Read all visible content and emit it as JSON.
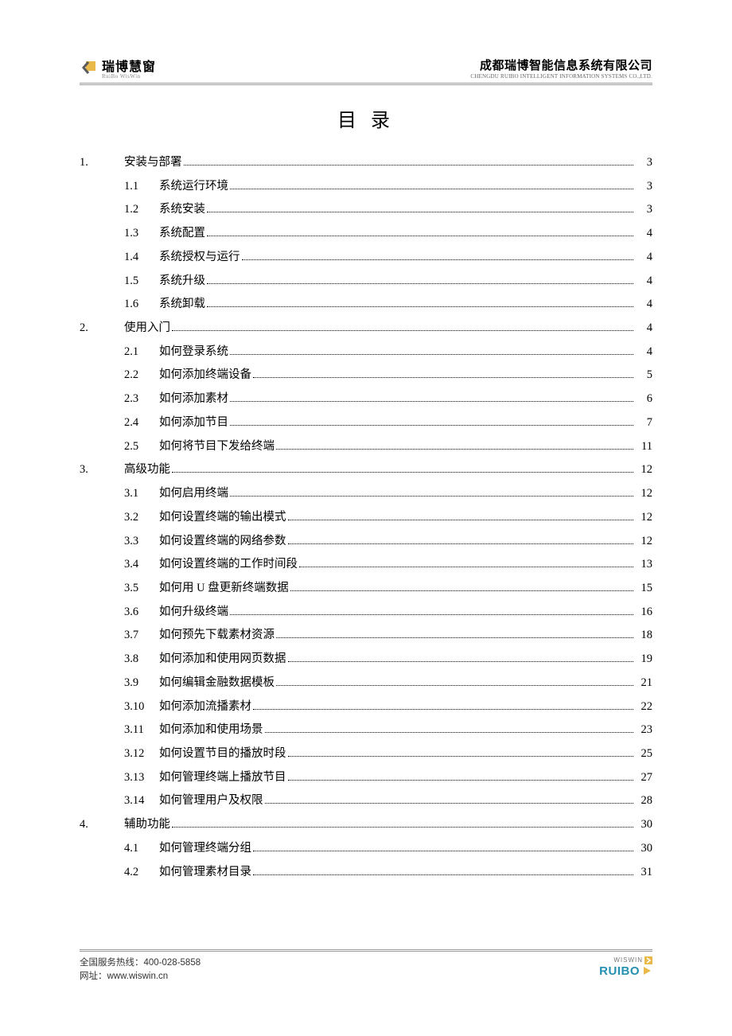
{
  "header": {
    "logo_zh": "瑞博慧窗",
    "logo_en": "RuiBo WisWin",
    "company_zh": "成都瑞博智能信息系统有限公司",
    "company_en": "CHENGDU RUIBO INTELLIGENT INFORMATION SYSTEMS CO.,LTD.",
    "logo_colors": {
      "square": "#e9b94a",
      "chevron": "#5a5a5a"
    }
  },
  "title": "目 录",
  "toc": [
    {
      "level": 1,
      "num": "1.",
      "label": "安装与部署",
      "page": "3"
    },
    {
      "level": 2,
      "num": "1.1",
      "label": "系统运行环境",
      "page": "3"
    },
    {
      "level": 2,
      "num": "1.2",
      "label": "系统安装",
      "page": "3"
    },
    {
      "level": 2,
      "num": "1.3",
      "label": "系统配置",
      "page": "4"
    },
    {
      "level": 2,
      "num": "1.4",
      "label": "系统授权与运行",
      "page": "4"
    },
    {
      "level": 2,
      "num": "1.5",
      "label": "系统升级",
      "page": "4"
    },
    {
      "level": 2,
      "num": "1.6",
      "label": "系统卸载",
      "page": "4"
    },
    {
      "level": 1,
      "num": "2.",
      "label": "使用入门",
      "page": "4"
    },
    {
      "level": 2,
      "num": "2.1",
      "label": "如何登录系统",
      "page": "4"
    },
    {
      "level": 2,
      "num": "2.2",
      "label": "如何添加终端设备",
      "page": "5"
    },
    {
      "level": 2,
      "num": "2.3",
      "label": "如何添加素材",
      "page": "6"
    },
    {
      "level": 2,
      "num": "2.4",
      "label": "如何添加节目",
      "page": "7"
    },
    {
      "level": 2,
      "num": "2.5",
      "label": "如何将节目下发给终端",
      "page": "11"
    },
    {
      "level": 1,
      "num": "3.",
      "label": "高级功能",
      "page": "12"
    },
    {
      "level": 2,
      "num": "3.1",
      "label": "如何启用终端",
      "page": "12"
    },
    {
      "level": 2,
      "num": "3.2",
      "label": "如何设置终端的输出模式",
      "page": "12"
    },
    {
      "level": 2,
      "num": "3.3",
      "label": "如何设置终端的网络参数",
      "page": "12"
    },
    {
      "level": 2,
      "num": "3.4",
      "label": "如何设置终端的工作时间段",
      "page": "13"
    },
    {
      "level": 2,
      "num": "3.5",
      "label": "如何用 U 盘更新终端数据",
      "page": "15"
    },
    {
      "level": 2,
      "num": "3.6",
      "label": "如何升级终端",
      "page": "16"
    },
    {
      "level": 2,
      "num": "3.7",
      "label": "如何预先下载素材资源",
      "page": "18"
    },
    {
      "level": 2,
      "num": "3.8",
      "label": "如何添加和使用网页数据",
      "page": "19"
    },
    {
      "level": 2,
      "num": "3.9",
      "label": "如何编辑金融数据模板",
      "page": "21"
    },
    {
      "level": 2,
      "num": "3.10",
      "label": "如何添加流播素材",
      "page": "22"
    },
    {
      "level": 2,
      "num": "3.11",
      "label": "如何添加和使用场景",
      "page": "23"
    },
    {
      "level": 2,
      "num": "3.12",
      "label": "如何设置节目的播放时段",
      "page": "25"
    },
    {
      "level": 2,
      "num": "3.13",
      "label": "如何管理终端上播放节目",
      "page": "27"
    },
    {
      "level": 2,
      "num": "3.14",
      "label": "如何管理用户及权限",
      "page": "28"
    },
    {
      "level": 1,
      "num": "4.",
      "label": "辅助功能",
      "page": "30"
    },
    {
      "level": 2,
      "num": "4.1",
      "label": "如何管理终端分组",
      "page": "30"
    },
    {
      "level": 2,
      "num": "4.2",
      "label": "如何管理素材目录",
      "page": "31"
    }
  ],
  "footer": {
    "hotline_label": "全国服务热线：",
    "hotline_value": "400-028-5858",
    "url_label": "网址：",
    "url_value": "www.wiswin.cn",
    "logo_top": "WISWIN",
    "logo_main": "RUIBO",
    "logo_colors": {
      "text": "#248fb0",
      "square": "#e9b94a",
      "tri": "#c59a3a"
    }
  },
  "style": {
    "page_bg": "#ffffff",
    "text_color": "#000000",
    "rule_color": "#9a9a9a",
    "font_body_size_pt": 11,
    "font_title_size_pt": 18,
    "line_height": 2.05
  }
}
